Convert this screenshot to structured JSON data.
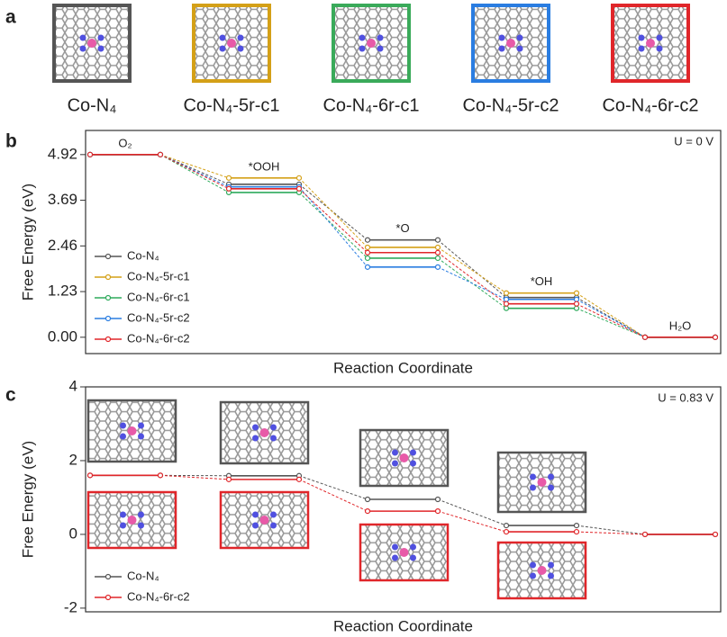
{
  "panel_labels": [
    "a",
    "b",
    "c"
  ],
  "structures": [
    {
      "label": "Co-N₄",
      "color": "#555555"
    },
    {
      "label": "Co-N₄-5r-c1",
      "color": "#d4a017"
    },
    {
      "label": "Co-N₄-6r-c1",
      "color": "#3aaa5a"
    },
    {
      "label": "Co-N₄-5r-c2",
      "color": "#2a7de1"
    },
    {
      "label": "Co-N₄-6r-c2",
      "color": "#e0262a"
    }
  ],
  "chart_data": [
    {
      "type": "line",
      "ylabel": "Free Energy (eV)",
      "xlabel": "Reaction Coordinate",
      "condition": "U = 0 V",
      "state_labels": [
        "O₂",
        "*OOH",
        "*O",
        "*OH",
        "H₂O"
      ],
      "ylim": [
        -0.44,
        5.57
      ],
      "yticks": [
        {
          "value": 0,
          "label": "0.00"
        },
        1.23,
        2.46,
        3.69,
        4.92
      ],
      "legend": "lower left",
      "series": [
        {
          "name": "Co-N₄",
          "color": "#555555",
          "values": [
            4.92,
            4.12,
            2.62,
            1.07,
            0
          ]
        },
        {
          "name": "Co-N₄-5r-c1",
          "color": "#d4a017",
          "values": [
            4.92,
            4.29,
            2.42,
            1.19,
            0
          ]
        },
        {
          "name": "Co-N₄-6r-c1",
          "color": "#2eaa5c",
          "values": [
            4.92,
            3.9,
            2.13,
            0.78,
            0
          ]
        },
        {
          "name": "Co-N₄-5r-c2",
          "color": "#2a7de1",
          "values": [
            4.92,
            4.05,
            1.89,
            1.02,
            0
          ]
        },
        {
          "name": "Co-N₄-6r-c2",
          "color": "#e0262a",
          "values": [
            4.92,
            4.0,
            2.28,
            0.9,
            0
          ]
        }
      ]
    },
    {
      "type": "line",
      "ylabel": "Free Energy (eV)",
      "xlabel": "Reaction Coordinate",
      "condition": "U = 0.83 V",
      "ylim": [
        -2.1,
        4
      ],
      "yticks": [
        -2,
        0,
        2,
        4
      ],
      "legend": "lower left",
      "series": [
        {
          "name": "Co-N₄",
          "color": "#555555",
          "values": [
            1.6,
            1.59,
            0.95,
            0.24,
            0
          ]
        },
        {
          "name": "Co-N₄-6r-c2",
          "color": "#e0262a",
          "values": [
            1.6,
            1.49,
            0.63,
            0.07,
            0
          ]
        }
      ]
    }
  ]
}
